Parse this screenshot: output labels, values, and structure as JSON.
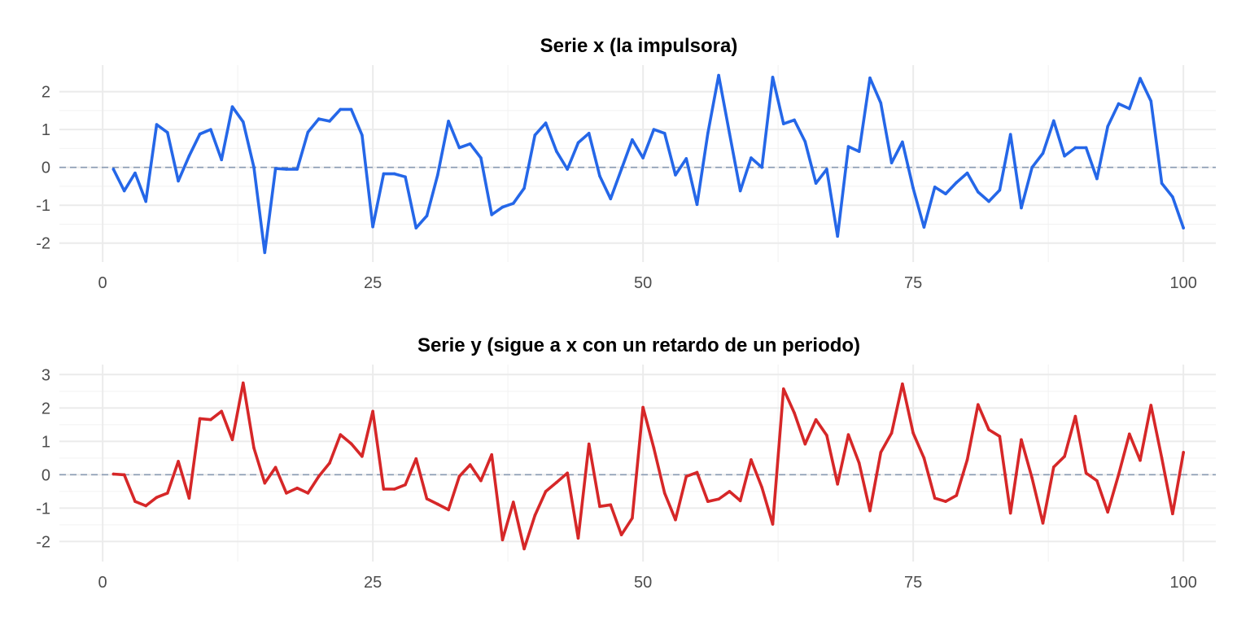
{
  "chart_data": [
    {
      "type": "line",
      "title": "Serie x (la impulsora)",
      "xlabel": "",
      "ylabel": "",
      "xlim": [
        -4,
        103
      ],
      "ylim": [
        -2.5,
        2.7
      ],
      "x_ticks": [
        0,
        25,
        50,
        75,
        100
      ],
      "x_tick_labels": [
        "0",
        "25",
        "50",
        "75",
        "100"
      ],
      "y_ticks": [
        -2,
        -1,
        0,
        1,
        2
      ],
      "y_tick_labels": [
        "-2",
        "-1",
        "0",
        "1",
        "2"
      ],
      "reference_line": 0,
      "grid": true,
      "color": "#2567e8",
      "reference_color": "#8a9bb3",
      "x": [
        1,
        2,
        3,
        4,
        5,
        6,
        7,
        8,
        9,
        10,
        11,
        12,
        13,
        14,
        15,
        16,
        17,
        18,
        19,
        20,
        21,
        22,
        23,
        24,
        25,
        26,
        27,
        28,
        29,
        30,
        31,
        32,
        33,
        34,
        35,
        36,
        37,
        38,
        39,
        40,
        41,
        42,
        43,
        44,
        45,
        46,
        47,
        48,
        49,
        50,
        51,
        52,
        53,
        54,
        55,
        56,
        57,
        58,
        59,
        60,
        61,
        62,
        63,
        64,
        65,
        66,
        67,
        68,
        69,
        70,
        71,
        72,
        73,
        74,
        75,
        76,
        77,
        78,
        79,
        80,
        81,
        82,
        83,
        84,
        85,
        86,
        87,
        88,
        89,
        90,
        91,
        92,
        93,
        94,
        95,
        96,
        97,
        98,
        99,
        100
      ],
      "values": [
        -0.05,
        -0.62,
        -0.15,
        -0.9,
        1.13,
        0.92,
        -0.36,
        0.3,
        0.88,
        1.0,
        0.2,
        1.6,
        1.2,
        0.0,
        -2.25,
        -0.03,
        -0.05,
        -0.05,
        0.93,
        1.28,
        1.22,
        1.53,
        1.53,
        0.85,
        -1.57,
        -0.17,
        -0.17,
        -0.25,
        -1.6,
        -1.28,
        -0.2,
        1.22,
        0.52,
        0.62,
        0.25,
        -1.25,
        -1.05,
        -0.95,
        -0.55,
        0.85,
        1.17,
        0.42,
        -0.05,
        0.65,
        0.9,
        -0.23,
        -0.83,
        -0.05,
        0.73,
        0.25,
        1.0,
        0.9,
        -0.2,
        0.23,
        -0.98,
        0.9,
        2.43,
        0.9,
        -0.62,
        0.25,
        0.0,
        2.38,
        1.15,
        1.25,
        0.68,
        -0.42,
        -0.05,
        -1.82,
        0.55,
        0.42,
        2.36,
        1.7,
        0.12,
        0.67,
        -0.55,
        -1.58,
        -0.52,
        -0.7,
        -0.4,
        -0.15,
        -0.65,
        -0.9,
        -0.6,
        0.87,
        -1.07,
        0.0,
        0.37,
        1.23,
        0.3,
        0.52,
        0.52,
        -0.3,
        1.08,
        1.68,
        1.55,
        2.35,
        1.75,
        -0.42,
        -0.78,
        -1.6
      ]
    },
    {
      "type": "line",
      "title": "Serie y (sigue a x con un retardo de un periodo)",
      "xlabel": "",
      "ylabel": "",
      "xlim": [
        -4,
        103
      ],
      "ylim": [
        -2.6,
        3.3
      ],
      "x_ticks": [
        0,
        25,
        50,
        75,
        100
      ],
      "x_tick_labels": [
        "0",
        "25",
        "50",
        "75",
        "100"
      ],
      "y_ticks": [
        -2,
        -1,
        0,
        1,
        2,
        3
      ],
      "y_tick_labels": [
        "-2",
        "-1",
        "0",
        "1",
        "2",
        "3"
      ],
      "reference_line": 0,
      "grid": true,
      "color": "#d62728",
      "reference_color": "#8a9bb3",
      "x": [
        1,
        2,
        3,
        4,
        5,
        6,
        7,
        8,
        9,
        10,
        11,
        12,
        13,
        14,
        15,
        16,
        17,
        18,
        19,
        20,
        21,
        22,
        23,
        24,
        25,
        26,
        27,
        28,
        29,
        30,
        31,
        32,
        33,
        34,
        35,
        36,
        37,
        38,
        39,
        40,
        41,
        42,
        43,
        44,
        45,
        46,
        47,
        48,
        49,
        50,
        51,
        52,
        53,
        54,
        55,
        56,
        57,
        58,
        59,
        60,
        61,
        62,
        63,
        64,
        65,
        66,
        67,
        68,
        69,
        70,
        71,
        72,
        73,
        74,
        75,
        76,
        77,
        78,
        79,
        80,
        81,
        82,
        83,
        84,
        85,
        86,
        87,
        88,
        89,
        90,
        91,
        92,
        93,
        94,
        95,
        96,
        97,
        98,
        99,
        100
      ],
      "values": [
        0.02,
        0.0,
        -0.8,
        -0.93,
        -0.68,
        -0.55,
        0.4,
        -0.7,
        1.68,
        1.65,
        1.9,
        1.05,
        2.75,
        0.8,
        -0.25,
        0.22,
        -0.55,
        -0.4,
        -0.55,
        -0.05,
        0.35,
        1.2,
        0.93,
        0.55,
        1.9,
        -0.43,
        -0.43,
        -0.3,
        0.48,
        -0.72,
        -0.88,
        -1.05,
        -0.05,
        0.3,
        -0.18,
        0.6,
        -1.95,
        -0.82,
        -2.22,
        -1.22,
        -0.5,
        -0.23,
        0.05,
        -1.9,
        0.92,
        -0.95,
        -0.9,
        -1.8,
        -1.3,
        2.02,
        0.8,
        -0.55,
        -1.35,
        -0.05,
        0.07,
        -0.8,
        -0.73,
        -0.5,
        -0.78,
        0.45,
        -0.38,
        -1.48,
        2.57,
        1.85,
        0.92,
        1.65,
        1.18,
        -0.28,
        1.2,
        0.35,
        -1.08,
        0.67,
        1.25,
        2.72,
        1.25,
        0.5,
        -0.7,
        -0.8,
        -0.62,
        0.45,
        2.1,
        1.35,
        1.15,
        -1.15,
        1.05,
        -0.1,
        -1.45,
        0.23,
        0.55,
        1.75,
        0.05,
        -0.18,
        -1.12,
        0.0,
        1.22,
        0.43,
        2.08,
        0.5,
        -1.17,
        0.67
      ]
    }
  ]
}
